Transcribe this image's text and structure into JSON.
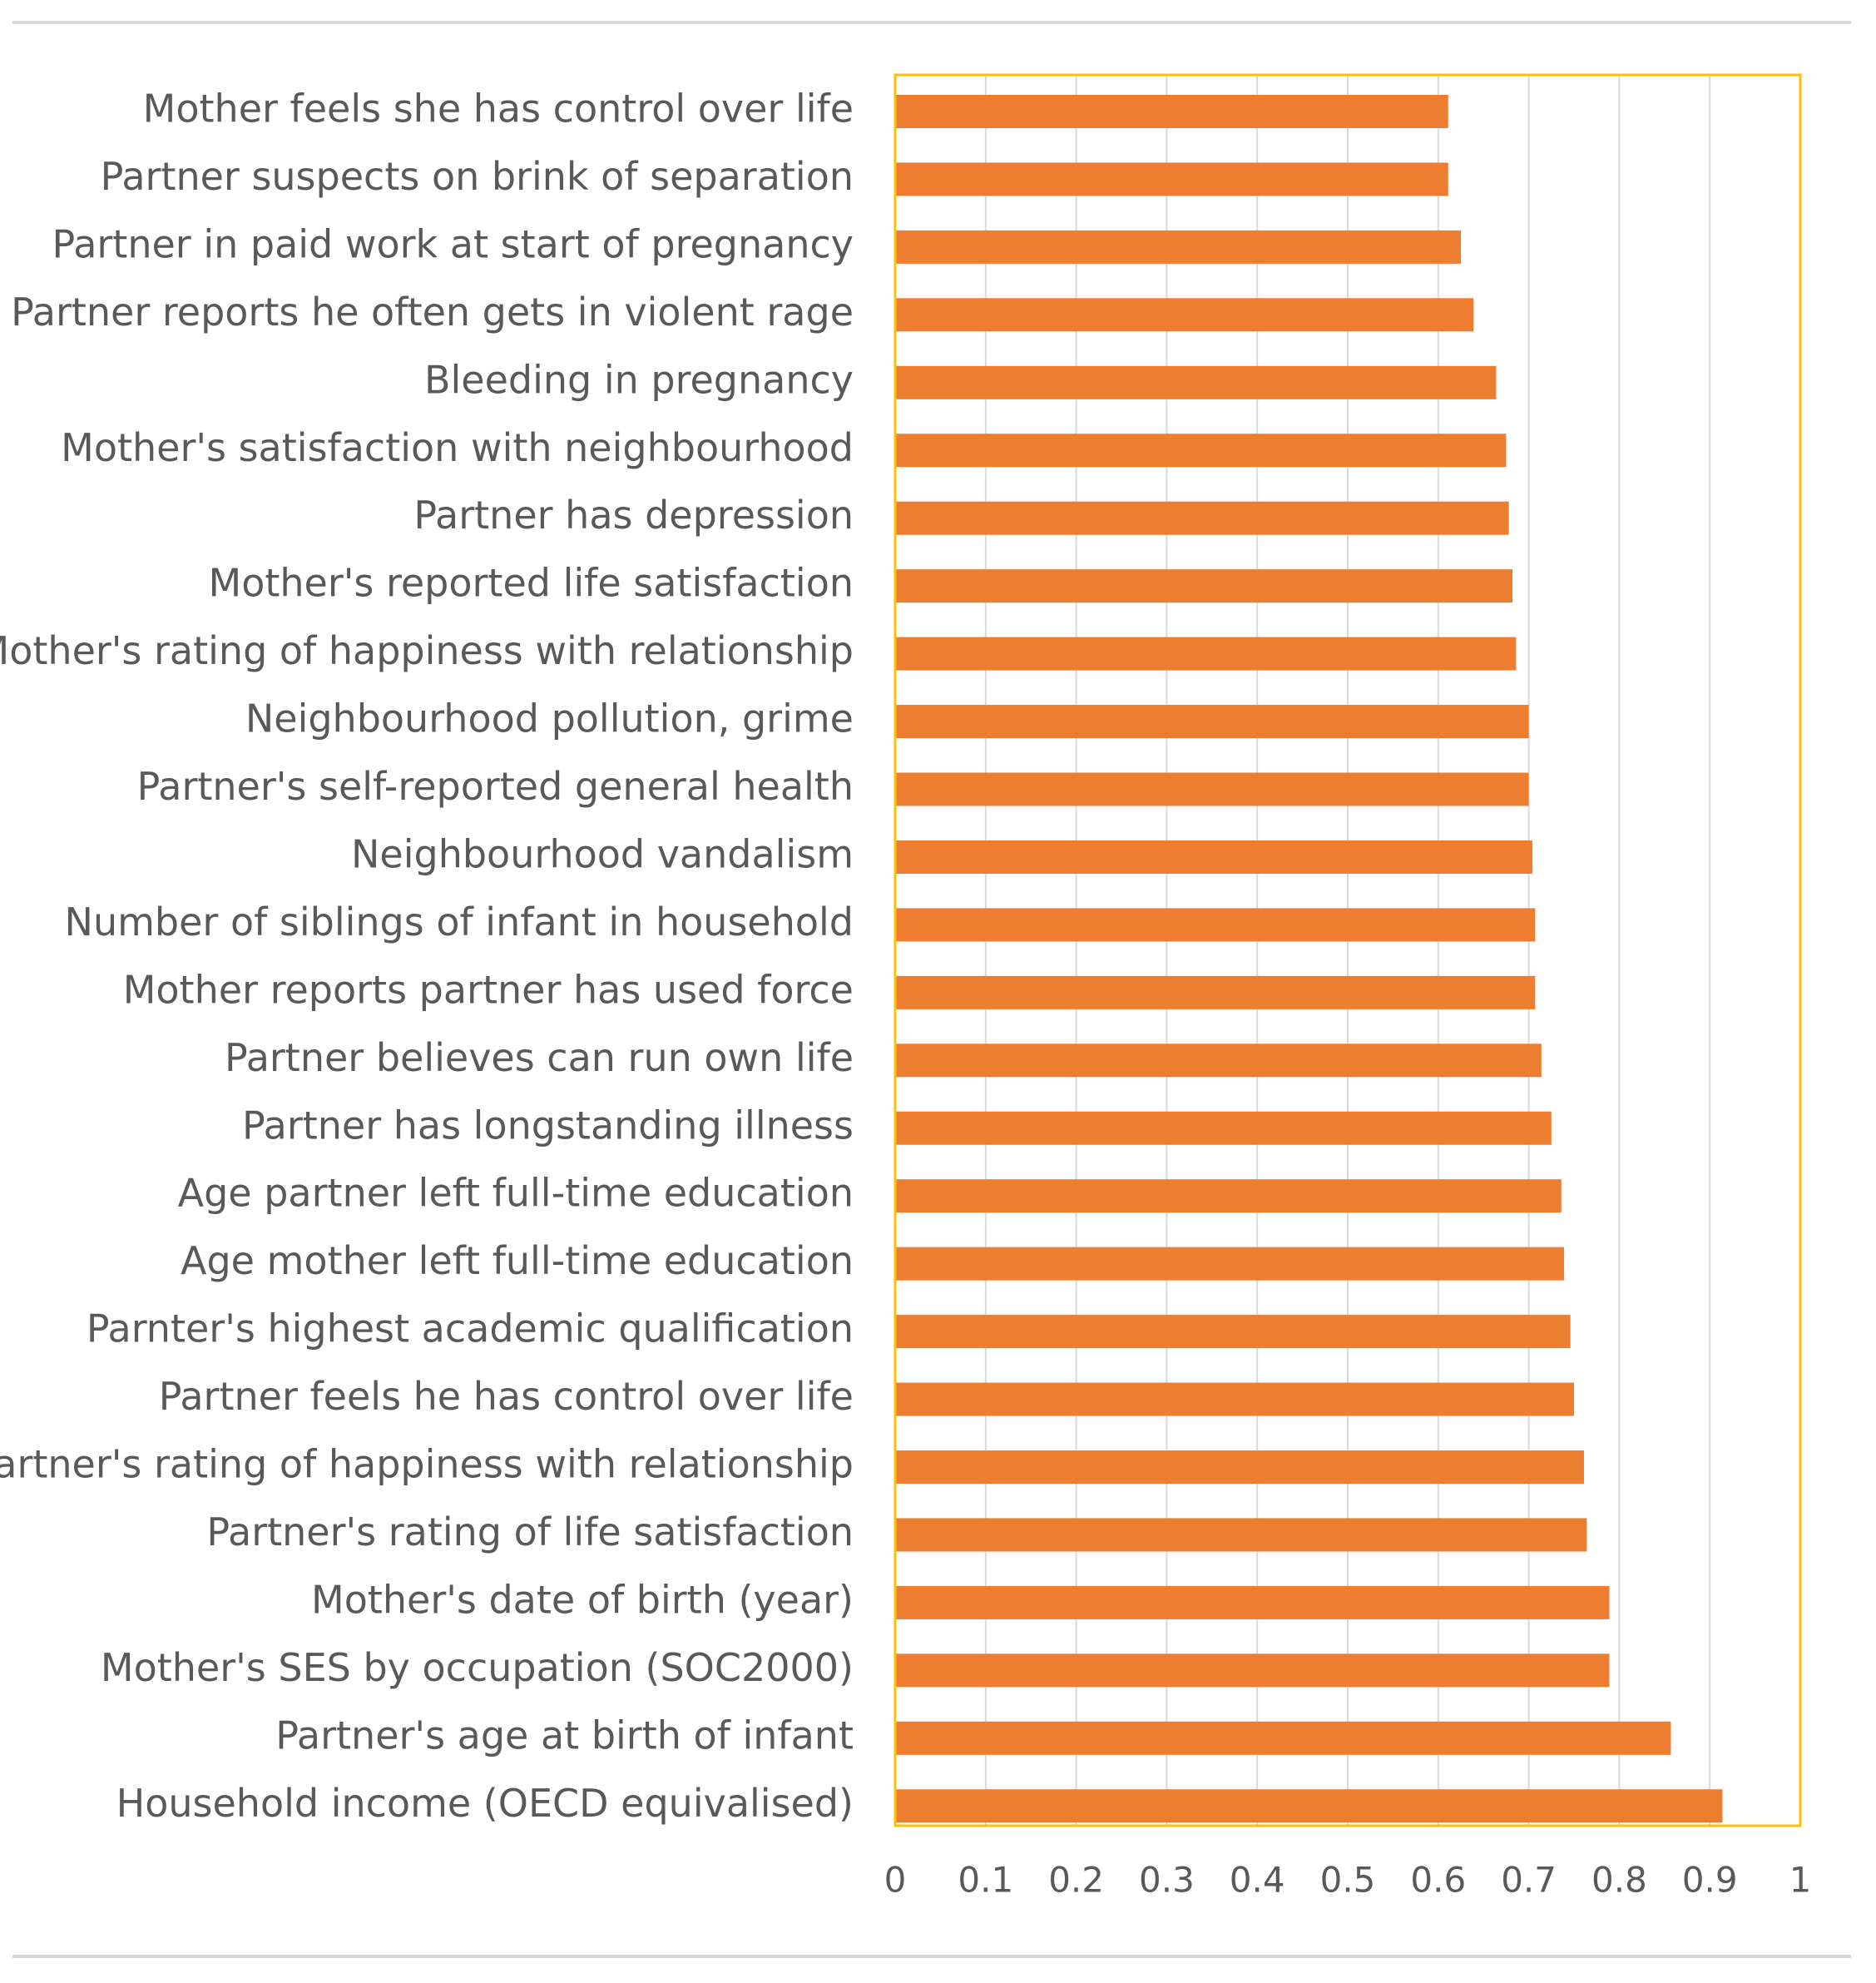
{
  "chart_data": {
    "type": "bar",
    "orientation": "horizontal",
    "title": "",
    "xlabel": "",
    "ylabel": "",
    "xlim": [
      0,
      1
    ],
    "grid": true,
    "bar_color": "#ED7D31",
    "plot_border_color": "#FFC000",
    "gridline_color": "#D9D9D9",
    "frame_line_color": "#D9D9D9",
    "ticks": [
      "0",
      "0.1",
      "0.2",
      "0.3",
      "0.4",
      "0.5",
      "0.6",
      "0.7",
      "0.8",
      "0.9",
      "1"
    ],
    "tick_values": [
      0,
      0.1,
      0.2,
      0.3,
      0.4,
      0.5,
      0.6,
      0.7,
      0.8,
      0.9,
      1
    ],
    "categories": [
      "Mother feels she has control over life",
      "Partner suspects on brink of separation",
      "Partner in paid work at start of pregnancy",
      "Partner reports he often gets in violent rage",
      "Bleeding in pregnancy",
      "Mother's satisfaction with neighbourhood",
      "Partner has depression",
      "Mother's reported life satisfaction",
      "Mother's rating of happiness with relationship",
      "Neighbourhood pollution, grime",
      "Partner's self-reported general health",
      "Neighbourhood vandalism",
      "Number of siblings of infant in household",
      "Mother reports partner has used force",
      "Partner believes can run own life",
      "Partner has longstanding illness",
      "Age partner left full-time education",
      "Age mother left full-time education",
      "Parnter's highest academic qualification",
      "Partner feels he has control over life",
      "Partner's rating of happiness with relationship",
      "Partner's rating of life satisfaction",
      "Mother's date of birth (year)",
      "Mother's SES by occupation (SOC2000)",
      "Partner's age at birth of infant",
      "Household income (OECD equivalised)"
    ],
    "values": [
      0.611,
      0.611,
      0.625,
      0.639,
      0.664,
      0.675,
      0.678,
      0.682,
      0.686,
      0.7,
      0.7,
      0.704,
      0.707,
      0.707,
      0.714,
      0.725,
      0.736,
      0.739,
      0.746,
      0.75,
      0.761,
      0.764,
      0.789,
      0.789,
      0.857,
      0.914
    ]
  }
}
